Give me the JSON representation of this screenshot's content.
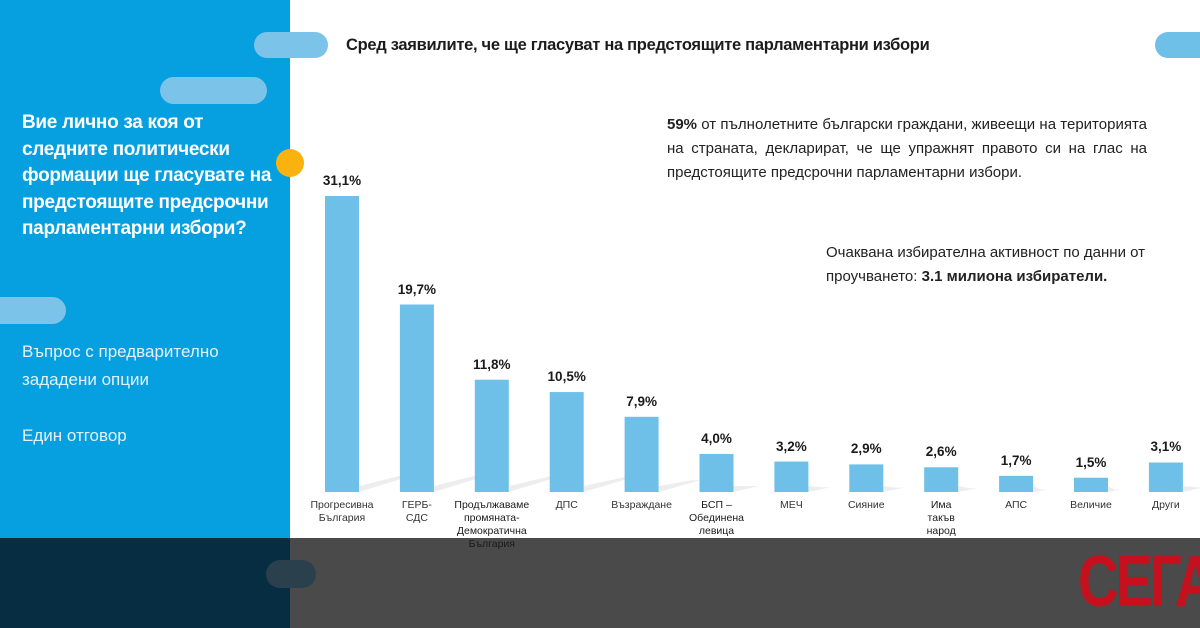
{
  "sidebar": {
    "question": "Вие лично за коя от следните политически формации ще гласувате на предстоящите предсрочни парламентарни избори?",
    "question_type": "Въпрос с предварително зададени опции",
    "answer_type": "Един отговор"
  },
  "notes": {
    "turnout_bold": "59%",
    "turnout_text": " от пълнолетните български граждани, живеещи на територията на страната, декларират, че ще упражнят правото си на глас на предстоящите предсрочни парламентарни избори.",
    "expected_text": "Очаквана избирателна активност по данни от проучването: ",
    "expected_bold": "3.1 милиона избиратели."
  },
  "logo": "СЕГА",
  "colors": {
    "panel": "#069fdf",
    "bar": "#6ec0e8",
    "accent_dot": "#f9b20e",
    "logo": "#c5101d",
    "footer_dark": "#062d41",
    "footer_grey": "#4a4a4a"
  },
  "chart_data": {
    "type": "bar",
    "title": "Сред заявилите, че ще гласуват на предстоящите парламентарни избори",
    "xlabel": "",
    "ylabel": "",
    "ylim": [
      0,
      31.1
    ],
    "grid": false,
    "categories": [
      "Прогресивна България",
      "ГЕРБ-СДС",
      "Продължаваме промяната-Демократична България",
      "ДПС",
      "Възраждане",
      "БСП – Обединена левица",
      "МЕЧ",
      "Сияние",
      "Има такъв народ",
      "АПС",
      "Величие",
      "Други"
    ],
    "category_lines": [
      [
        "Прогресивна",
        "България"
      ],
      [
        "ГЕРБ-",
        "СДС"
      ],
      [
        "Продължаваме",
        "промяната-",
        "Демократична",
        "България"
      ],
      [
        "ДПС"
      ],
      [
        "Възраждане"
      ],
      [
        "БСП –",
        "Обединена",
        "левица"
      ],
      [
        "МЕЧ"
      ],
      [
        "Сияние"
      ],
      [
        "Има",
        "такъв",
        "народ"
      ],
      [
        "АПС"
      ],
      [
        "Величие"
      ],
      [
        "Други"
      ]
    ],
    "values": [
      31.1,
      19.7,
      11.8,
      10.5,
      7.9,
      4.0,
      3.2,
      2.9,
      2.6,
      1.7,
      1.5,
      3.1
    ],
    "value_labels": [
      "31,1%",
      "19,7%",
      "11,8%",
      "10,5%",
      "7,9%",
      "4,0%",
      "3,2%",
      "2,9%",
      "2,6%",
      "1,7%",
      "1,5%",
      "3,1%"
    ]
  }
}
